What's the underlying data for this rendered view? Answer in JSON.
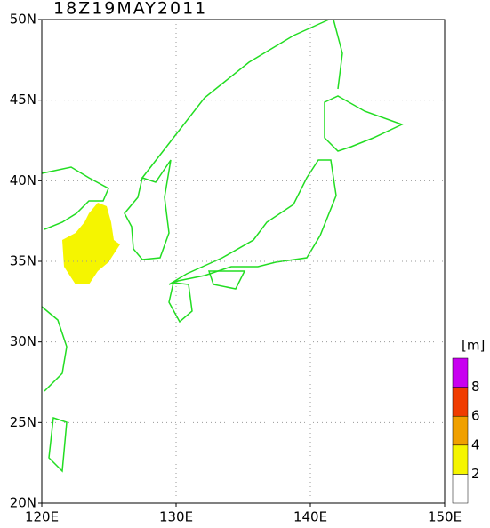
{
  "title": "18Z19MAY2011",
  "y_axis": {
    "labels": [
      "50N",
      "45N",
      "40N",
      "35N",
      "30N",
      "25N",
      "20N"
    ]
  },
  "x_axis": {
    "labels": [
      "120E",
      "130E",
      "140E",
      "150E"
    ]
  },
  "colorbar": {
    "unit": "[m]",
    "colors": [
      "#ffffff",
      "#f5f500",
      "#f0a000",
      "#f03c00",
      "#c800f0"
    ],
    "labels": [
      "2",
      "4",
      "6",
      "8"
    ]
  }
}
